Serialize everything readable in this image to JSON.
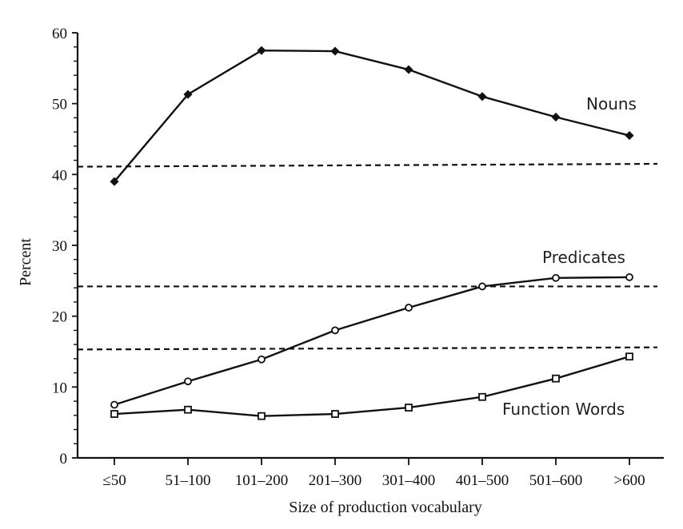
{
  "chart_data": {
    "type": "line",
    "xlabel": "Size of production vocabulary",
    "ylabel": "Percent",
    "ylim": [
      0,
      60
    ],
    "yticks": [
      "0",
      "10",
      "20",
      "30",
      "40",
      "50",
      "60"
    ],
    "categories": [
      "≤50",
      "51–100",
      "101–200",
      "201–300",
      "301–400",
      "401–500",
      "501–600",
      ">600"
    ],
    "series": [
      {
        "name": "Nouns",
        "marker": "filled-diamond",
        "values": [
          39,
          51.3,
          57.5,
          57.4,
          54.8,
          51,
          48.1,
          45.5
        ]
      },
      {
        "name": "Predicates",
        "marker": "open-circle",
        "values": [
          7.5,
          10.8,
          13.9,
          18,
          21.2,
          24.2,
          25.4,
          25.5
        ]
      },
      {
        "name": "Function Words",
        "marker": "open-square",
        "values": [
          6.2,
          6.8,
          5.9,
          6.2,
          7.1,
          8.6,
          11.2,
          14.3
        ]
      }
    ],
    "reference_lines": [
      {
        "y_start": 41.1,
        "y_end": 41.5
      },
      {
        "y_start": 24.2,
        "y_end": 24.2
      },
      {
        "y_start": 15.3,
        "y_end": 15.6
      }
    ],
    "grid": false,
    "legend": "inline-labels"
  }
}
